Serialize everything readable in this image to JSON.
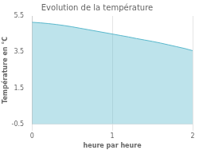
{
  "chart_data": {
    "type": "area",
    "title": "Evolution de la température",
    "xlabel": "heure par heure",
    "ylabel": "Température en °C",
    "x": [
      0.0,
      0.1,
      0.2,
      0.3,
      0.4,
      0.5,
      0.6,
      0.7,
      0.8,
      0.9,
      1.0,
      1.1,
      1.2,
      1.3,
      1.4,
      1.5,
      1.6,
      1.7,
      1.8,
      1.9,
      2.0
    ],
    "values": [
      5.15,
      5.12,
      5.08,
      5.03,
      4.97,
      4.9,
      4.82,
      4.74,
      4.66,
      4.58,
      4.5,
      4.42,
      4.34,
      4.25,
      4.17,
      4.09,
      4.0,
      3.9,
      3.8,
      3.7,
      3.58
    ],
    "color": "#5ab8cc",
    "xlim": [
      0,
      2
    ],
    "ylim": [
      -0.5,
      5.5
    ],
    "xticks": [
      0,
      1,
      2
    ],
    "yticks": [
      -0.5,
      1.5,
      3.5,
      5.5
    ],
    "grid": "x"
  }
}
